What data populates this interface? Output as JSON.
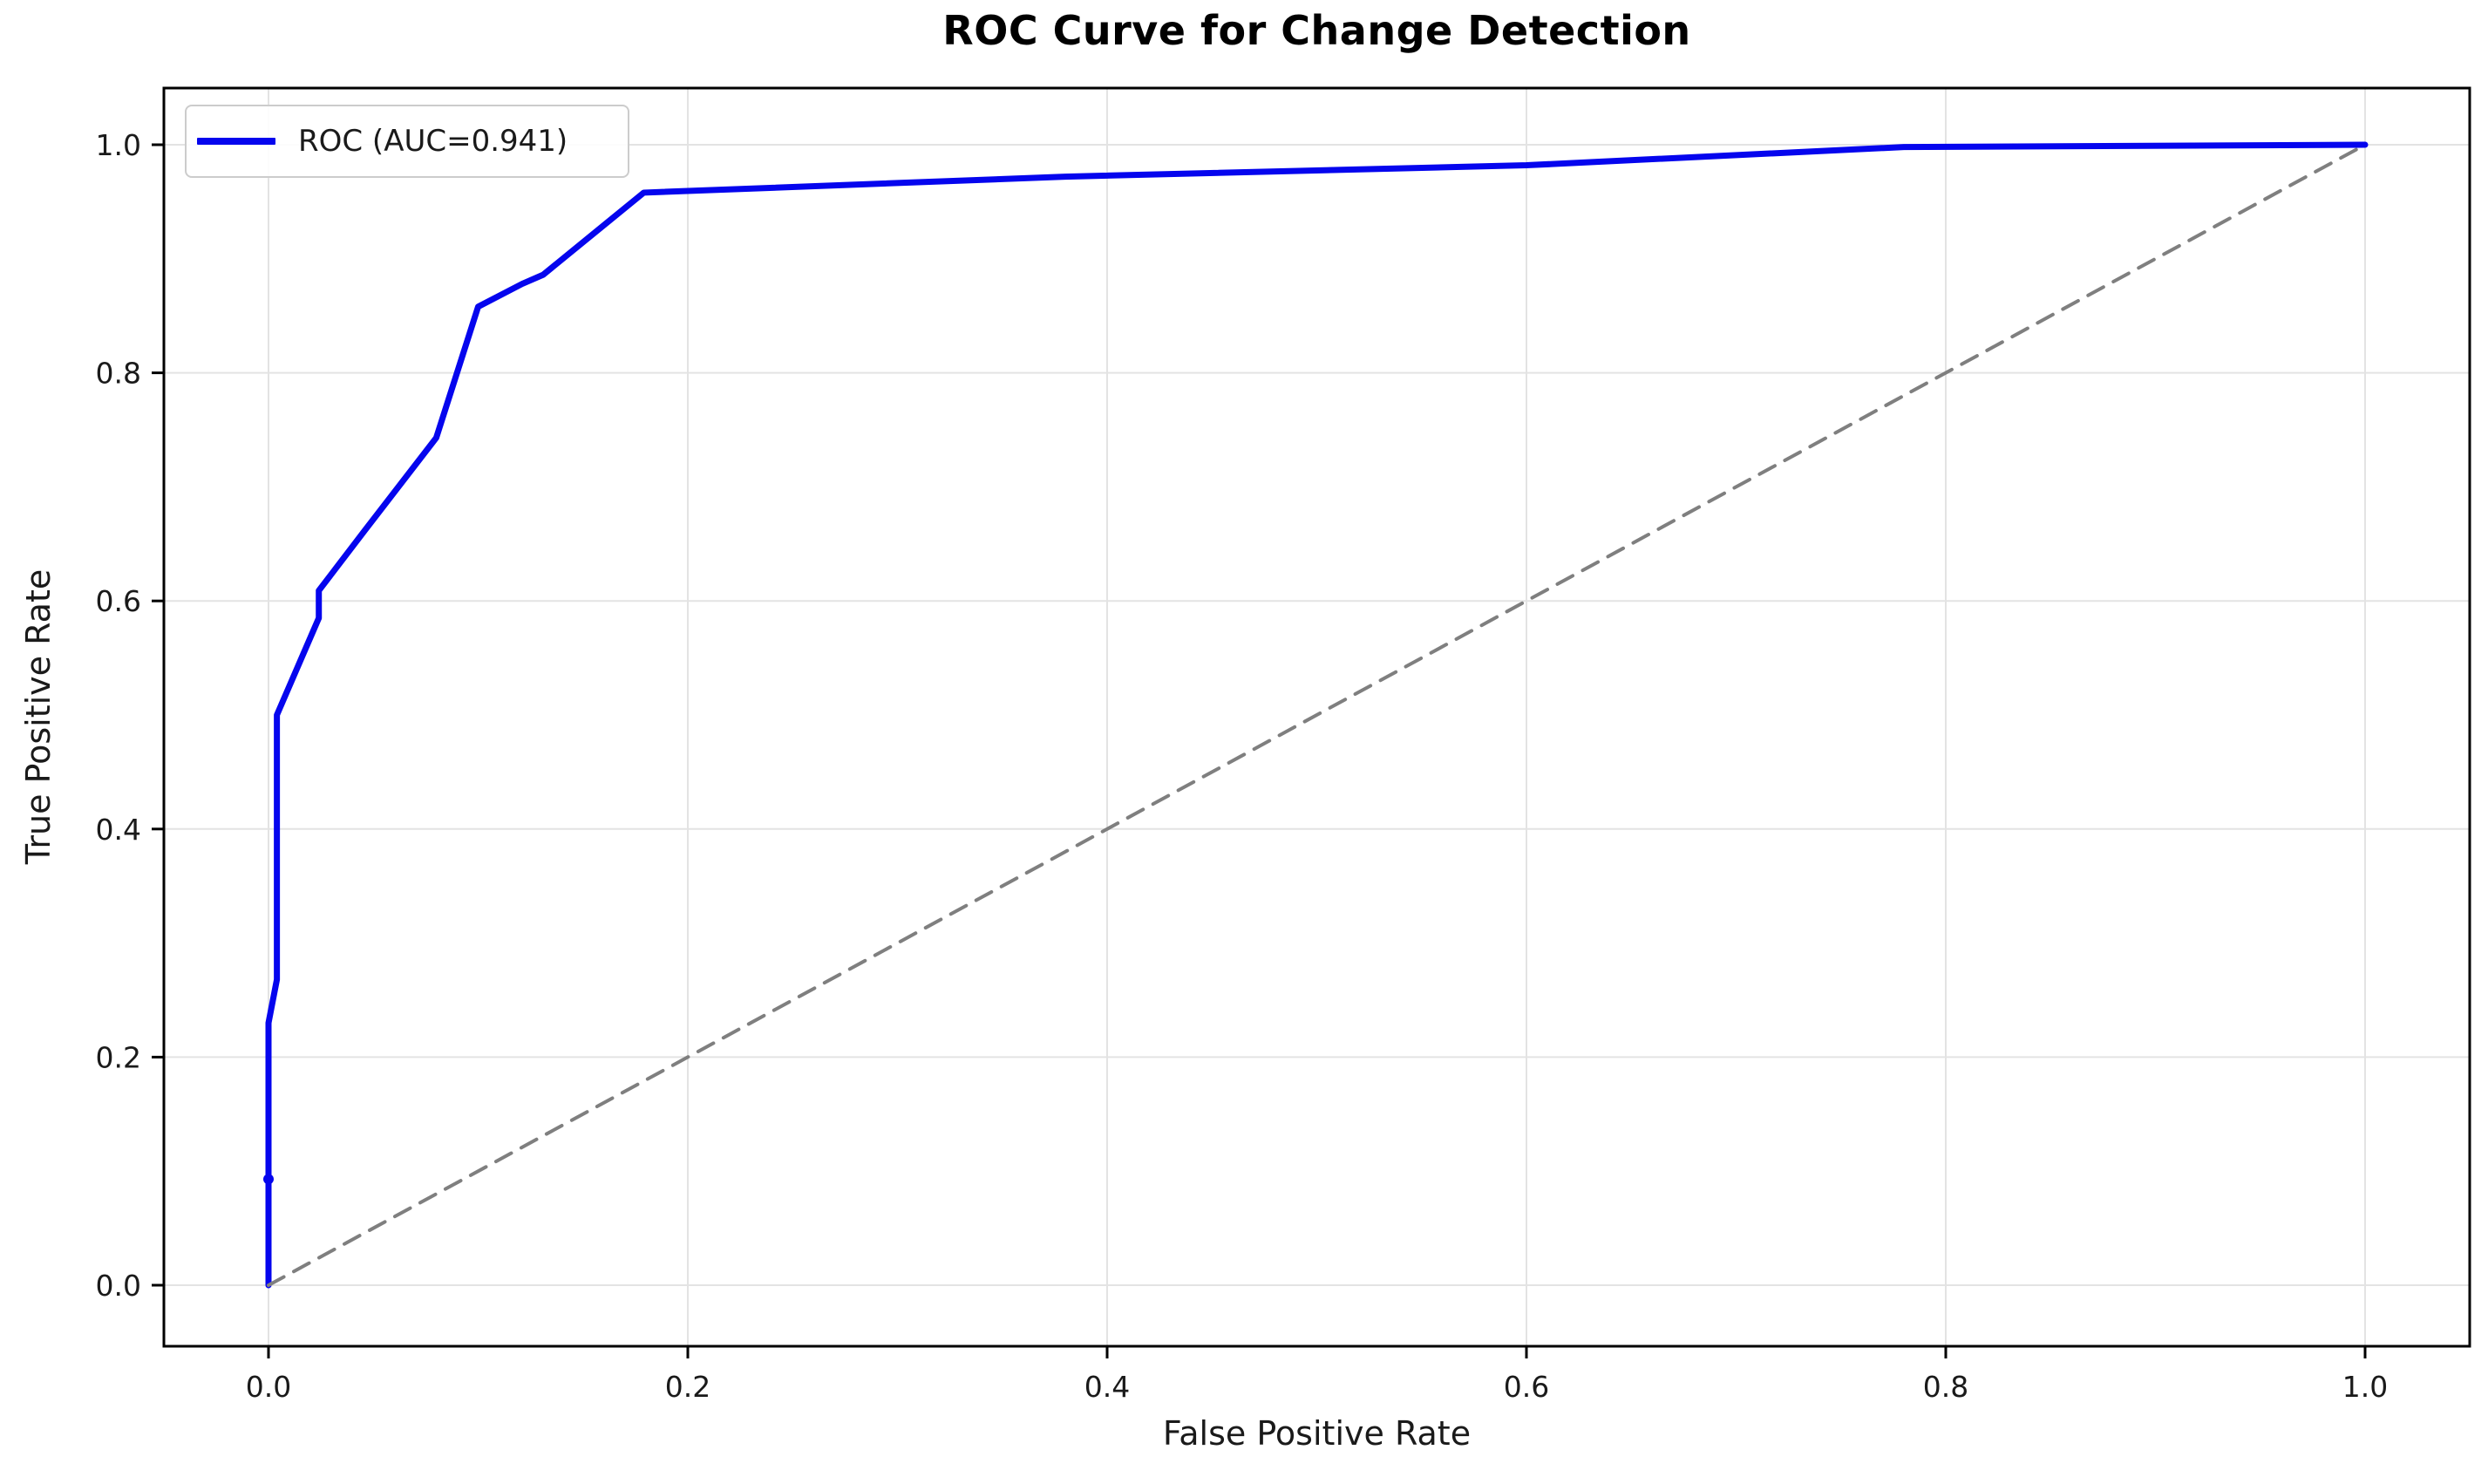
{
  "figure": {
    "title": "ROC Curve for Change Detection",
    "xlabel": "False Positive Rate",
    "ylabel": "True Positive Rate"
  },
  "legend": {
    "label": "ROC (AUC=0.941)",
    "position": "upper left"
  },
  "colors": {
    "roc_line": "#0505ee",
    "chance_line": "#7f7f7f",
    "grid": "#e3e3e3",
    "spine": "#000000",
    "tick_text": "#1a1a1a",
    "legend_border": "#cccccc"
  },
  "chart_data": {
    "type": "line",
    "title": "ROC Curve for Change Detection",
    "xlabel": "False Positive Rate",
    "ylabel": "True Positive Rate",
    "xlim": [
      -0.05,
      1.05
    ],
    "ylim": [
      -0.054,
      1.054
    ],
    "xticks": [
      0.0,
      0.2,
      0.4,
      0.6,
      0.8,
      1.0
    ],
    "yticks": [
      0.0,
      0.2,
      0.4,
      0.6,
      0.8,
      1.0
    ],
    "xtick_labels": [
      "0.0",
      "0.2",
      "0.4",
      "0.6",
      "0.8",
      "1.0"
    ],
    "ytick_labels": [
      "0.0",
      "0.2",
      "0.4",
      "0.6",
      "0.8",
      "1.0"
    ],
    "grid": true,
    "legend_position": "upper left",
    "auc": 0.941,
    "series": [
      {
        "name": "ROC (AUC=0.941)",
        "style": "solid",
        "color": "#0505ee",
        "x": [
          0.0,
          0.0,
          0.0,
          0.004,
          0.004,
          0.024,
          0.024,
          0.046,
          0.08,
          0.1,
          0.121,
          0.131,
          0.179,
          0.38,
          0.6,
          0.78,
          1.0
        ],
        "y": [
          0.0,
          0.093,
          0.23,
          0.268,
          0.5,
          0.585,
          0.609,
          0.662,
          0.743,
          0.858,
          0.878,
          0.886,
          0.958,
          0.972,
          0.982,
          0.998,
          1.0
        ]
      },
      {
        "name": "chance diagonal",
        "style": "dashed",
        "color": "#7f7f7f",
        "x": [
          0.0,
          1.0
        ],
        "y": [
          0.0,
          1.0
        ]
      }
    ],
    "marker_point": {
      "x": 0.0,
      "y": 0.093
    }
  }
}
